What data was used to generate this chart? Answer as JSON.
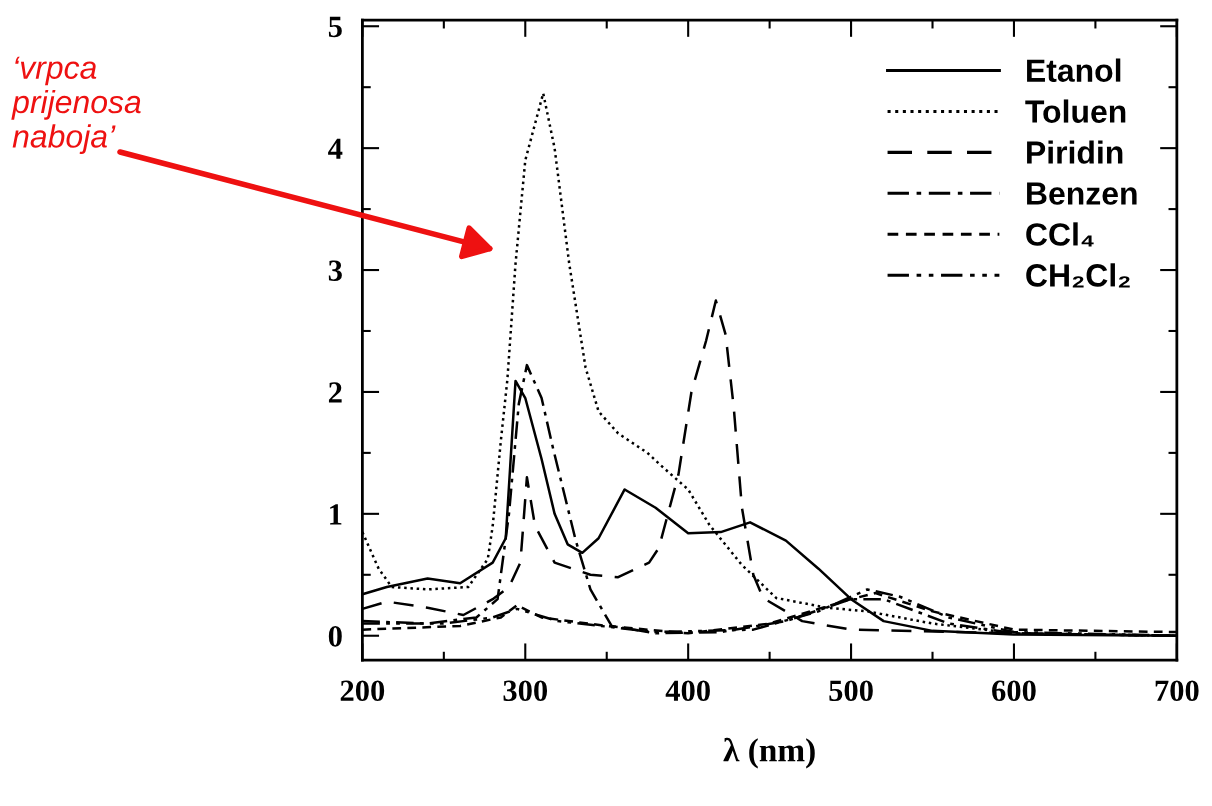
{
  "chart_data": {
    "type": "line",
    "xlabel": "λ (nm)",
    "xlim": [
      200,
      700
    ],
    "xticks": [
      200,
      300,
      400,
      500,
      600,
      700
    ],
    "ylim": [
      -0.2,
      5.05
    ],
    "yticks": [
      0,
      1,
      2,
      3,
      4,
      5
    ],
    "grid": false,
    "legend": "top right",
    "marker": "none",
    "annotations": [
      "‘vrpca\nprijenosa\nnaboja’"
    ],
    "series": [
      {
        "name": "Etanol",
        "color": "#000000",
        "line_style": "solid",
        "x": [
          200,
          215,
          240,
          260,
          280,
          288,
          294,
          300,
          310,
          318,
          326,
          335,
          345,
          361,
          380,
          400,
          420,
          438,
          460,
          480,
          500,
          520,
          550,
          600,
          700
        ],
        "values": [
          0.34,
          0.4,
          0.47,
          0.43,
          0.6,
          0.8,
          2.09,
          1.95,
          1.45,
          1.0,
          0.75,
          0.68,
          0.8,
          1.2,
          1.05,
          0.84,
          0.85,
          0.93,
          0.78,
          0.55,
          0.3,
          0.12,
          0.04,
          0.01,
          0
        ]
      },
      {
        "name": "Toluen",
        "color": "#000000",
        "line_style": "dotted",
        "x": [
          200,
          210,
          218,
          240,
          265,
          277,
          280,
          285,
          289,
          294,
          300,
          311,
          318,
          327,
          337,
          345,
          357,
          375,
          383,
          400,
          413,
          433,
          454,
          485,
          510,
          550,
          600,
          700
        ],
        "values": [
          0.85,
          0.55,
          0.4,
          0.38,
          0.4,
          0.63,
          0.9,
          1.6,
          2.1,
          3.05,
          3.9,
          4.45,
          4.0,
          3.05,
          2.2,
          1.84,
          1.66,
          1.5,
          1.4,
          1.2,
          0.91,
          0.58,
          0.31,
          0.23,
          0.2,
          0.1,
          0.02,
          0
        ]
      },
      {
        "name": "Piridin",
        "color": "#000000",
        "line_style": "dashed",
        "x": [
          200,
          215,
          240,
          262,
          280,
          290,
          297,
          301,
          306,
          318,
          340,
          357,
          376,
          382,
          394,
          402,
          411,
          417,
          423,
          428,
          433,
          440,
          446,
          470,
          500,
          600,
          700
        ],
        "values": [
          0.22,
          0.28,
          0.23,
          0.17,
          0.3,
          0.4,
          0.6,
          1.3,
          0.9,
          0.6,
          0.5,
          0.48,
          0.6,
          0.72,
          1.32,
          2.0,
          2.42,
          2.75,
          2.47,
          1.87,
          1.05,
          0.5,
          0.31,
          0.12,
          0.05,
          0.02,
          0
        ]
      },
      {
        "name": "Benzen",
        "color": "#000000",
        "line_style": "dashdot",
        "x": [
          200,
          240,
          270,
          283,
          290,
          296,
          301,
          310,
          317,
          331,
          340,
          353,
          380,
          420,
          460,
          500,
          520,
          560,
          600,
          700
        ],
        "values": [
          0.12,
          0.1,
          0.15,
          0.3,
          1.0,
          1.9,
          2.22,
          1.95,
          1.54,
          0.78,
          0.38,
          0.08,
          0.02,
          0.03,
          0.12,
          0.3,
          0.3,
          0.1,
          0.02,
          0
        ]
      },
      {
        "name": "CCl₄",
        "color": "#000000",
        "line_style": "shortdash",
        "x": [
          200,
          260,
          285,
          295,
          310,
          350,
          400,
          450,
          500,
          515,
          550,
          600,
          700
        ],
        "values": [
          0.05,
          0.08,
          0.15,
          0.25,
          0.15,
          0.08,
          0.02,
          0.1,
          0.3,
          0.35,
          0.2,
          0.05,
          0.03
        ]
      },
      {
        "name": "CH₂Cl₂",
        "color": "#000000",
        "line_style": "dashdotdot",
        "x": [
          200,
          250,
          280,
          295,
          320,
          380,
          440,
          480,
          510,
          530,
          560,
          600,
          700
        ],
        "values": [
          0.1,
          0.1,
          0.15,
          0.22,
          0.12,
          0.03,
          0.05,
          0.2,
          0.38,
          0.32,
          0.15,
          0.03,
          0
        ]
      }
    ]
  }
}
